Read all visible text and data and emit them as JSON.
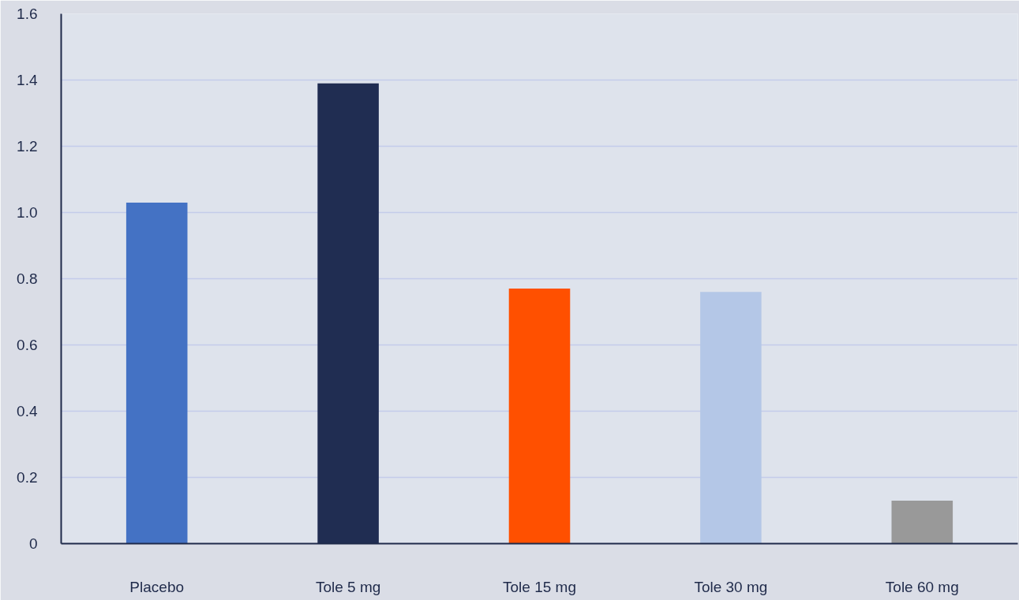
{
  "chart_data": {
    "type": "bar",
    "categories": [
      "Placebo",
      "Tole 5 mg",
      "Tole 15 mg",
      "Tole 30 mg",
      "Tole 60 mg"
    ],
    "values": [
      1.03,
      1.39,
      0.77,
      0.76,
      0.13
    ],
    "colors": [
      "#4472c4",
      "#202d52",
      "#ff5000",
      "#b4c7e7",
      "#999999"
    ],
    "ylim": [
      0,
      1.6
    ],
    "yticks": [
      0,
      0.2,
      0.4,
      0.6,
      0.8,
      {
        "value": 1,
        "label": "1.0"
      },
      1.2,
      1.4,
      1.6
    ],
    "grid": "y"
  }
}
